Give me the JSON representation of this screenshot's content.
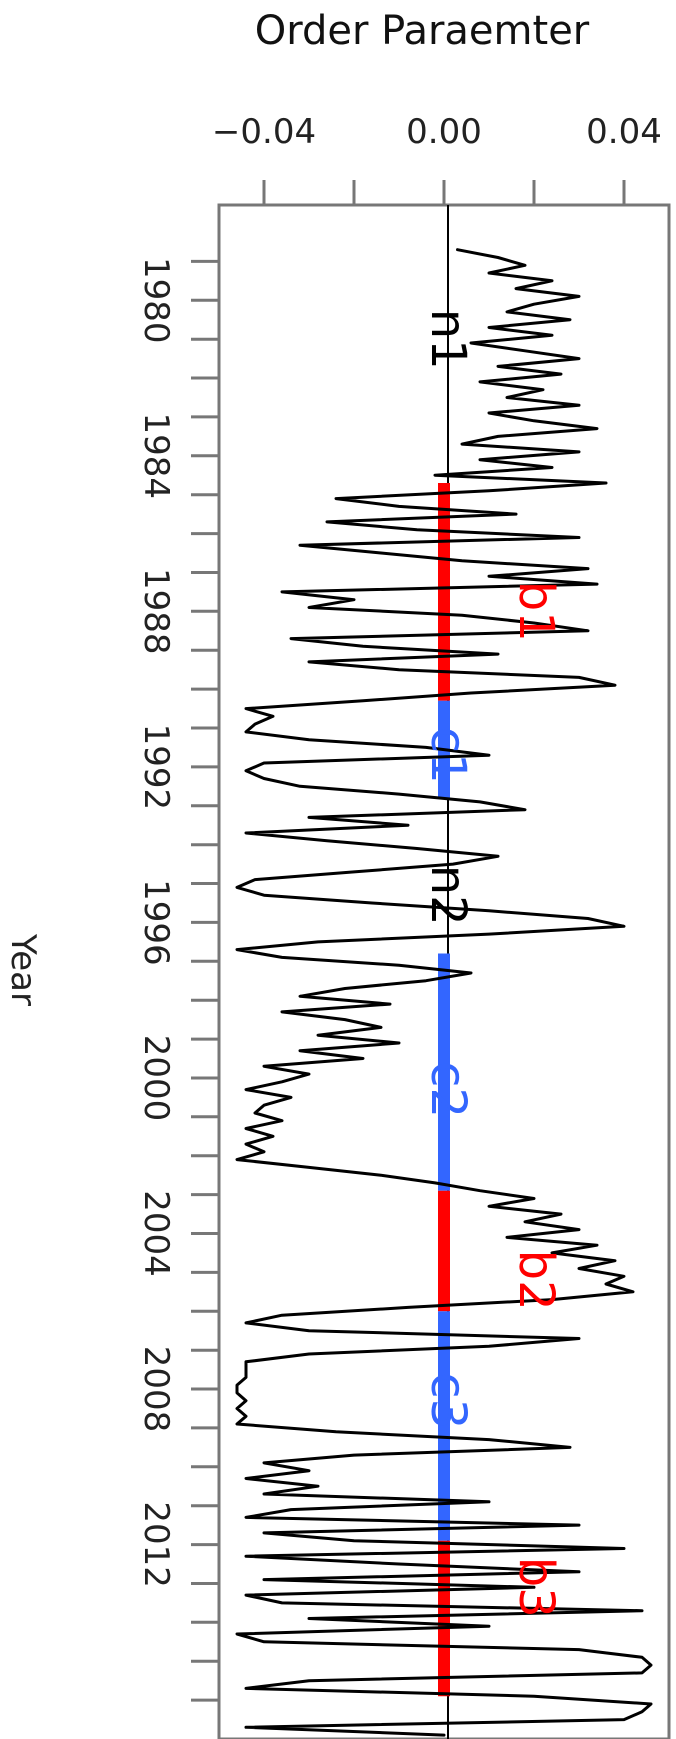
{
  "chart_data": {
    "type": "line",
    "title": "Order Paraemter",
    "xlabel": "",
    "ylabel": "Year",
    "orientation": "time-vertical-rotated",
    "value_range": [
      -0.05,
      0.05
    ],
    "year_range": [
      1977.55,
      2017.0
    ],
    "x_tick_labels": [
      "−0.04",
      "0.00",
      "0.04"
    ],
    "x_tick_values": [
      -0.04,
      0.0,
      0.04
    ],
    "x_minor_tick_values": [
      -0.02,
      0.02
    ],
    "y_tick_labels": [
      "1980",
      "1984",
      "1988",
      "1992",
      "1996",
      "2000",
      "2004",
      "2008",
      "2012"
    ],
    "y_tick_values": [
      1980,
      1984,
      1988,
      1992,
      1996,
      2000,
      2004,
      2008,
      2012
    ],
    "y_minor_tick_start": 1979,
    "y_minor_tick_end": 2016,
    "grid": false,
    "series": [
      {
        "color": "#000000",
        "points": [
          [
            1978.7,
            0.003
          ],
          [
            1978.9,
            0.012
          ],
          [
            1979.1,
            0.018
          ],
          [
            1979.3,
            0.01
          ],
          [
            1979.5,
            0.024
          ],
          [
            1979.7,
            0.016
          ],
          [
            1979.9,
            0.03
          ],
          [
            1980.1,
            0.02
          ],
          [
            1980.3,
            0.014
          ],
          [
            1980.5,
            0.028
          ],
          [
            1980.7,
            0.01
          ],
          [
            1980.9,
            0.024
          ],
          [
            1981.1,
            0.006
          ],
          [
            1981.3,
            0.018
          ],
          [
            1981.5,
            0.03
          ],
          [
            1981.7,
            0.012
          ],
          [
            1981.9,
            0.026
          ],
          [
            1982.1,
            0.008
          ],
          [
            1982.3,
            0.022
          ],
          [
            1982.5,
            0.014
          ],
          [
            1982.7,
            0.03
          ],
          [
            1982.9,
            0.01
          ],
          [
            1983.1,
            0.02
          ],
          [
            1983.3,
            0.034
          ],
          [
            1983.5,
            0.012
          ],
          [
            1983.7,
            0.004
          ],
          [
            1983.9,
            0.03
          ],
          [
            1984.1,
            0.008
          ],
          [
            1984.3,
            0.024
          ],
          [
            1984.5,
            -0.002
          ],
          [
            1984.7,
            0.036
          ],
          [
            1984.9,
            0.01
          ],
          [
            1985.1,
            -0.024
          ],
          [
            1985.3,
            -0.01
          ],
          [
            1985.5,
            0.016
          ],
          [
            1985.7,
            -0.026
          ],
          [
            1985.9,
            -0.006
          ],
          [
            1986.1,
            0.03
          ],
          [
            1986.3,
            -0.032
          ],
          [
            1986.5,
            -0.014
          ],
          [
            1986.7,
            0.004
          ],
          [
            1986.9,
            0.032
          ],
          [
            1987.1,
            0.01
          ],
          [
            1987.3,
            0.034
          ],
          [
            1987.5,
            -0.036
          ],
          [
            1987.7,
            -0.02
          ],
          [
            1987.9,
            -0.03
          ],
          [
            1988.1,
            0.004
          ],
          [
            1988.3,
            0.02
          ],
          [
            1988.5,
            0.032
          ],
          [
            1988.7,
            -0.034
          ],
          [
            1988.9,
            -0.018
          ],
          [
            1989.1,
            0.012
          ],
          [
            1989.3,
            -0.03
          ],
          [
            1989.5,
            -0.01
          ],
          [
            1989.7,
            0.03
          ],
          [
            1989.9,
            0.038
          ],
          [
            1990.1,
            0.006
          ],
          [
            1990.3,
            -0.018
          ],
          [
            1990.5,
            -0.044
          ],
          [
            1990.7,
            -0.038
          ],
          [
            1990.9,
            -0.042
          ],
          [
            1991.1,
            -0.044
          ],
          [
            1991.3,
            -0.03
          ],
          [
            1991.5,
            -0.004
          ],
          [
            1991.7,
            0.01
          ],
          [
            1991.9,
            -0.04
          ],
          [
            1992.1,
            -0.044
          ],
          [
            1992.3,
            -0.04
          ],
          [
            1992.5,
            -0.032
          ],
          [
            1992.7,
            -0.01
          ],
          [
            1992.9,
            0.008
          ],
          [
            1993.1,
            0.018
          ],
          [
            1993.3,
            -0.03
          ],
          [
            1993.5,
            -0.008
          ],
          [
            1993.7,
            -0.044
          ],
          [
            1993.9,
            -0.026
          ],
          [
            1994.1,
            -0.006
          ],
          [
            1994.3,
            0.012
          ],
          [
            1994.5,
            0.002
          ],
          [
            1994.7,
            -0.02
          ],
          [
            1994.9,
            -0.042
          ],
          [
            1995.1,
            -0.046
          ],
          [
            1995.3,
            -0.04
          ],
          [
            1995.5,
            -0.016
          ],
          [
            1995.7,
            0.01
          ],
          [
            1995.9,
            0.032
          ],
          [
            1996.1,
            0.04
          ],
          [
            1996.3,
            0.01
          ],
          [
            1996.5,
            -0.028
          ],
          [
            1996.7,
            -0.046
          ],
          [
            1996.9,
            -0.036
          ],
          [
            1997.1,
            -0.01
          ],
          [
            1997.3,
            0.006
          ],
          [
            1997.5,
            -0.004
          ],
          [
            1997.7,
            -0.022
          ],
          [
            1997.9,
            -0.032
          ],
          [
            1998.1,
            -0.012
          ],
          [
            1998.3,
            -0.036
          ],
          [
            1998.5,
            -0.022
          ],
          [
            1998.7,
            -0.014
          ],
          [
            1998.9,
            -0.028
          ],
          [
            1999.1,
            -0.01
          ],
          [
            1999.3,
            -0.032
          ],
          [
            1999.5,
            -0.018
          ],
          [
            1999.7,
            -0.04
          ],
          [
            1999.9,
            -0.03
          ],
          [
            2000.1,
            -0.036
          ],
          [
            2000.3,
            -0.044
          ],
          [
            2000.5,
            -0.034
          ],
          [
            2000.7,
            -0.04
          ],
          [
            2000.9,
            -0.042
          ],
          [
            2001.1,
            -0.036
          ],
          [
            2001.3,
            -0.044
          ],
          [
            2001.5,
            -0.038
          ],
          [
            2001.7,
            -0.044
          ],
          [
            2001.9,
            -0.04
          ],
          [
            2002.1,
            -0.046
          ],
          [
            2002.3,
            -0.03
          ],
          [
            2002.5,
            -0.014
          ],
          [
            2002.7,
            -0.002
          ],
          [
            2002.9,
            0.008
          ],
          [
            2003.1,
            0.02
          ],
          [
            2003.3,
            0.01
          ],
          [
            2003.5,
            0.026
          ],
          [
            2003.7,
            0.018
          ],
          [
            2003.9,
            0.03
          ],
          [
            2004.1,
            0.014
          ],
          [
            2004.3,
            0.034
          ],
          [
            2004.5,
            0.024
          ],
          [
            2004.7,
            0.038
          ],
          [
            2004.9,
            0.03
          ],
          [
            2005.1,
            0.04
          ],
          [
            2005.3,
            0.036
          ],
          [
            2005.5,
            0.042
          ],
          [
            2005.7,
            0.024
          ],
          [
            2005.9,
            -0.008
          ],
          [
            2006.1,
            -0.036
          ],
          [
            2006.3,
            -0.044
          ],
          [
            2006.5,
            -0.03
          ],
          [
            2006.7,
            0.03
          ],
          [
            2006.9,
            0.01
          ],
          [
            2007.1,
            -0.03
          ],
          [
            2007.3,
            -0.044
          ],
          [
            2007.5,
            -0.044
          ],
          [
            2007.7,
            -0.044
          ],
          [
            2007.9,
            -0.046
          ],
          [
            2008.1,
            -0.046
          ],
          [
            2008.3,
            -0.044
          ],
          [
            2008.5,
            -0.046
          ],
          [
            2008.7,
            -0.044
          ],
          [
            2008.9,
            -0.046
          ],
          [
            2009.1,
            -0.024
          ],
          [
            2009.3,
            0.01
          ],
          [
            2009.5,
            0.028
          ],
          [
            2009.7,
            -0.02
          ],
          [
            2009.9,
            -0.04
          ],
          [
            2010.1,
            -0.03
          ],
          [
            2010.3,
            -0.044
          ],
          [
            2010.5,
            -0.028
          ],
          [
            2010.7,
            -0.04
          ],
          [
            2010.9,
            0.01
          ],
          [
            2011.1,
            -0.034
          ],
          [
            2011.3,
            -0.044
          ],
          [
            2011.5,
            0.03
          ],
          [
            2011.7,
            -0.04
          ],
          [
            2011.9,
            -0.02
          ],
          [
            2012.1,
            0.04
          ],
          [
            2012.3,
            -0.044
          ],
          [
            2012.5,
            -0.01
          ],
          [
            2012.7,
            0.03
          ],
          [
            2012.9,
            -0.04
          ],
          [
            2013.1,
            0.02
          ],
          [
            2013.3,
            -0.044
          ],
          [
            2013.5,
            -0.036
          ],
          [
            2013.7,
            0.044
          ],
          [
            2013.9,
            -0.03
          ],
          [
            2014.1,
            0.01
          ],
          [
            2014.3,
            -0.046
          ],
          [
            2014.5,
            -0.04
          ],
          [
            2014.7,
            0.03
          ],
          [
            2014.9,
            0.044
          ],
          [
            2015.1,
            0.046
          ],
          [
            2015.3,
            0.044
          ],
          [
            2015.5,
            -0.03
          ],
          [
            2015.7,
            -0.044
          ],
          [
            2015.9,
            0.02
          ],
          [
            2016.1,
            0.046
          ],
          [
            2016.3,
            0.044
          ],
          [
            2016.5,
            0.04
          ],
          [
            2016.7,
            -0.044
          ],
          [
            2016.9,
            0.0
          ]
        ]
      }
    ],
    "segments": [
      {
        "label": "b1",
        "start": 1984.7,
        "end": 1990.3,
        "color": "#ff0000"
      },
      {
        "label": "c1",
        "start": 1990.3,
        "end": 1992.8,
        "color": "#3366ff"
      },
      {
        "label": "c2",
        "start": 1996.8,
        "end": 2002.9,
        "color": "#3366ff"
      },
      {
        "label": "b2",
        "start": 2002.9,
        "end": 2006.0,
        "color": "#ff0000"
      },
      {
        "label": "c3",
        "start": 2006.0,
        "end": 2011.9,
        "color": "#3366ff"
      },
      {
        "label": "b3",
        "start": 2011.9,
        "end": 2015.9,
        "color": "#ff0000"
      }
    ],
    "annotations": [
      {
        "text": "n1",
        "year": 1981.0,
        "color": "#000000",
        "side": "left"
      },
      {
        "text": "b1",
        "year": 1988.0,
        "color": "#ff0000",
        "side": "right"
      },
      {
        "text": "c1",
        "year": 1991.7,
        "color": "#3366ff",
        "side": "left"
      },
      {
        "text": "n2",
        "year": 1995.3,
        "color": "#000000",
        "side": "left"
      },
      {
        "text": "c2",
        "year": 2000.3,
        "color": "#3366ff",
        "side": "left"
      },
      {
        "text": "b2",
        "year": 2005.2,
        "color": "#ff0000",
        "side": "right"
      },
      {
        "text": "c3",
        "year": 2008.3,
        "color": "#3366ff",
        "side": "left"
      },
      {
        "text": "b3",
        "year": 2013.1,
        "color": "#ff0000",
        "side": "right"
      }
    ]
  }
}
